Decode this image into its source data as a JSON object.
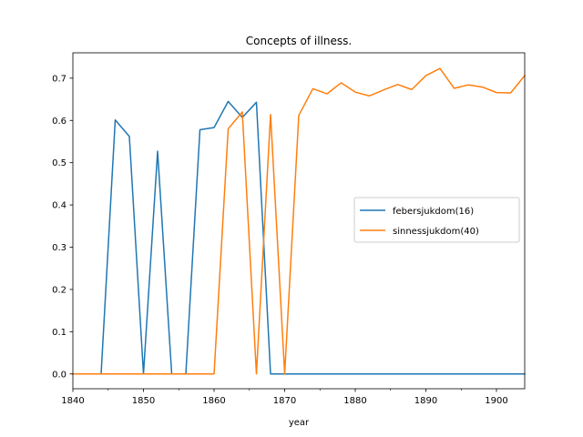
{
  "chart_data": {
    "type": "line",
    "title": "Concepts of illness.",
    "xlabel": "year",
    "ylabel": "",
    "xlim": [
      1840,
      1904
    ],
    "ylim": [
      -0.035,
      0.76
    ],
    "xticks": [
      1840,
      1850,
      1860,
      1870,
      1880,
      1890,
      1900
    ],
    "x_minor_ticks": [
      1845,
      1855,
      1865,
      1875,
      1885,
      1895
    ],
    "yticks": [
      0.0,
      0.1,
      0.2,
      0.3,
      0.4,
      0.5,
      0.6,
      0.7
    ],
    "ytick_labels": [
      "0.0",
      "0.1",
      "0.2",
      "0.3",
      "0.4",
      "0.5",
      "0.6",
      "0.7"
    ],
    "grid": false,
    "legend": "center-right",
    "series": [
      {
        "name": "febersjukdom(16)",
        "color": "#1f77b4",
        "x": [
          1840,
          1842,
          1844,
          1846,
          1848,
          1850,
          1852,
          1854,
          1856,
          1858,
          1860,
          1862,
          1864,
          1866,
          1868,
          1870,
          1872,
          1874,
          1876,
          1878,
          1880,
          1882,
          1884,
          1886,
          1888,
          1890,
          1892,
          1894,
          1896,
          1898,
          1900,
          1902,
          1904
        ],
        "values": [
          0.0,
          0.0,
          0.0,
          0.601,
          0.562,
          0.0,
          0.527,
          0.0,
          0.0,
          0.578,
          0.583,
          0.645,
          0.607,
          0.643,
          0.0,
          0.0,
          0.0,
          0.0,
          0.0,
          0.0,
          0.0,
          0.0,
          0.0,
          0.0,
          0.0,
          0.0,
          0.0,
          0.0,
          0.0,
          0.0,
          0.0,
          0.0,
          0.0
        ]
      },
      {
        "name": "sinnessjukdom(40)",
        "color": "#ff7f0e",
        "x": [
          1840,
          1842,
          1844,
          1846,
          1848,
          1850,
          1852,
          1854,
          1856,
          1858,
          1860,
          1862,
          1864,
          1866,
          1868,
          1870,
          1872,
          1874,
          1876,
          1878,
          1880,
          1882,
          1884,
          1886,
          1888,
          1890,
          1892,
          1894,
          1896,
          1898,
          1900,
          1902,
          1904
        ],
        "values": [
          0.0,
          0.0,
          0.0,
          0.0,
          0.0,
          0.0,
          0.0,
          0.0,
          0.0,
          0.0,
          0.0,
          0.58,
          0.62,
          0.0,
          0.614,
          0.0,
          0.612,
          0.675,
          0.663,
          0.689,
          0.667,
          0.658,
          0.672,
          0.685,
          0.673,
          0.706,
          0.723,
          0.676,
          0.684,
          0.679,
          0.666,
          0.665,
          0.706
        ]
      }
    ]
  }
}
